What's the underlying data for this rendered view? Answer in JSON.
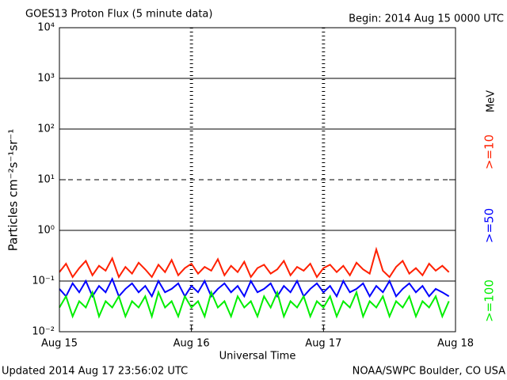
{
  "chart_data": {
    "type": "line",
    "title": "GOES13 Proton Flux (5 minute data)",
    "subtitle": "Begin: 2014 Aug 15 0000 UTC",
    "x_label": "Universal Time",
    "y_label": "Particles cm⁻²s⁻¹sr⁻¹",
    "units": "MeV",
    "footer_left": "Updated 2014 Aug 17 23:56:02 UTC",
    "footer_right": "NOAA/SWPC Boulder, CO USA",
    "log_y": true,
    "grid": true,
    "dashed_at": [
      10
    ],
    "xlim": [
      0,
      3
    ],
    "xticks": [
      {
        "value": 0,
        "label": "Aug 15"
      },
      {
        "value": 1,
        "label": "Aug 16"
      },
      {
        "value": 2,
        "label": "Aug 17"
      },
      {
        "value": 3,
        "label": "Aug 18"
      }
    ],
    "ylim": [
      0.01,
      10000
    ],
    "yticks": [
      {
        "value": 10000,
        "label": "10⁴"
      },
      {
        "value": 1000,
        "label": "10³"
      },
      {
        "value": 100,
        "label": "10²"
      },
      {
        "value": 10,
        "label": "10¹"
      },
      {
        "value": 1,
        "label": "10⁰"
      },
      {
        "value": 0.1,
        "label": "10⁻¹"
      },
      {
        "value": 0.01,
        "label": "10⁻²"
      }
    ],
    "x": [
      0,
      0.05,
      0.1,
      0.15,
      0.2,
      0.25,
      0.3,
      0.35,
      0.4,
      0.45,
      0.5,
      0.55,
      0.6,
      0.65,
      0.7,
      0.75,
      0.8,
      0.85,
      0.9,
      0.95,
      1,
      1.05,
      1.1,
      1.15,
      1.2,
      1.25,
      1.3,
      1.35,
      1.4,
      1.45,
      1.5,
      1.55,
      1.6,
      1.65,
      1.7,
      1.75,
      1.8,
      1.85,
      1.9,
      1.95,
      2,
      2.05,
      2.1,
      2.15,
      2.2,
      2.25,
      2.3,
      2.35,
      2.4,
      2.45,
      2.5,
      2.55,
      2.6,
      2.65,
      2.7,
      2.75,
      2.8,
      2.85,
      2.9,
      2.95
    ],
    "series": [
      {
        "name": ">=10",
        "color": "#ff2000",
        "values": [
          0.15,
          0.22,
          0.12,
          0.18,
          0.25,
          0.13,
          0.2,
          0.16,
          0.28,
          0.12,
          0.19,
          0.14,
          0.23,
          0.17,
          0.12,
          0.21,
          0.15,
          0.26,
          0.13,
          0.18,
          0.22,
          0.14,
          0.19,
          0.16,
          0.27,
          0.13,
          0.2,
          0.15,
          0.24,
          0.12,
          0.18,
          0.21,
          0.14,
          0.17,
          0.25,
          0.13,
          0.19,
          0.16,
          0.22,
          0.12,
          0.18,
          0.21,
          0.15,
          0.2,
          0.13,
          0.23,
          0.17,
          0.14,
          0.42,
          0.16,
          0.12,
          0.19,
          0.25,
          0.14,
          0.18,
          0.13,
          0.22,
          0.16,
          0.2,
          0.15
        ]
      },
      {
        "name": ">=50",
        "color": "#0000ff",
        "values": [
          0.07,
          0.05,
          0.09,
          0.06,
          0.1,
          0.05,
          0.08,
          0.06,
          0.11,
          0.05,
          0.07,
          0.09,
          0.06,
          0.08,
          0.05,
          0.1,
          0.06,
          0.07,
          0.09,
          0.05,
          0.08,
          0.06,
          0.1,
          0.05,
          0.07,
          0.09,
          0.06,
          0.08,
          0.05,
          0.1,
          0.06,
          0.07,
          0.09,
          0.05,
          0.08,
          0.06,
          0.1,
          0.05,
          0.07,
          0.09,
          0.06,
          0.08,
          0.05,
          0.1,
          0.06,
          0.07,
          0.09,
          0.05,
          0.08,
          0.06,
          0.1,
          0.05,
          0.07,
          0.09,
          0.06,
          0.08,
          0.05,
          0.07,
          0.06,
          0.05
        ]
      },
      {
        "name": ">=100",
        "color": "#00ee00",
        "values": [
          0.03,
          0.05,
          0.02,
          0.04,
          0.03,
          0.06,
          0.02,
          0.04,
          0.03,
          0.05,
          0.02,
          0.04,
          0.03,
          0.05,
          0.02,
          0.06,
          0.03,
          0.04,
          0.02,
          0.05,
          0.03,
          0.04,
          0.02,
          0.06,
          0.03,
          0.04,
          0.02,
          0.05,
          0.03,
          0.04,
          0.02,
          0.05,
          0.03,
          0.06,
          0.02,
          0.04,
          0.03,
          0.05,
          0.02,
          0.04,
          0.03,
          0.05,
          0.02,
          0.04,
          0.03,
          0.06,
          0.02,
          0.04,
          0.03,
          0.05,
          0.02,
          0.04,
          0.03,
          0.05,
          0.02,
          0.04,
          0.03,
          0.05,
          0.02,
          0.04
        ]
      }
    ]
  }
}
